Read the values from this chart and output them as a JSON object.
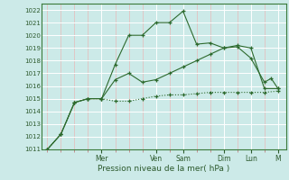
{
  "xlabel": "Pression niveau de la mer( hPa )",
  "bg_color": "#cceae8",
  "grid_color": "#ffffff",
  "line_color": "#2d6a2d",
  "ylim": [
    1011,
    1022.5
  ],
  "yticks": [
    1011,
    1012,
    1013,
    1014,
    1015,
    1016,
    1017,
    1018,
    1019,
    1020,
    1021,
    1022
  ],
  "day_labels": [
    "Mer",
    "Ven",
    "Sam",
    "Dim",
    "Lun",
    "M"
  ],
  "day_positions": [
    2.0,
    4.0,
    5.0,
    6.5,
    7.5,
    8.5
  ],
  "series1_x": [
    0,
    0.5,
    1.0,
    1.5,
    2.0,
    2.5,
    3.0,
    3.5,
    4.0,
    4.5,
    5.0,
    5.5,
    6.0,
    6.5,
    7.0,
    7.5,
    8.0,
    8.5
  ],
  "series1_y": [
    1011.0,
    1012.2,
    1014.7,
    1015.0,
    1015.0,
    1014.8,
    1014.8,
    1015.0,
    1015.2,
    1015.3,
    1015.3,
    1015.4,
    1015.5,
    1015.5,
    1015.5,
    1015.5,
    1015.5,
    1015.6
  ],
  "series2_x": [
    0,
    0.5,
    1.0,
    1.5,
    2.0,
    2.5,
    3.0,
    3.5,
    4.0,
    4.5,
    5.0,
    5.5,
    6.0,
    6.5,
    7.0,
    7.5,
    8.0,
    8.5
  ],
  "series2_y": [
    1011.0,
    1012.2,
    1014.7,
    1015.0,
    1015.0,
    1016.5,
    1017.0,
    1016.3,
    1016.5,
    1017.0,
    1017.5,
    1018.0,
    1018.5,
    1019.0,
    1019.2,
    1019.0,
    1015.8,
    1015.8
  ],
  "series3_x": [
    0,
    0.5,
    1.0,
    1.5,
    2.0,
    2.5,
    3.0,
    3.5,
    4.0,
    4.5,
    5.0,
    5.5,
    6.0,
    6.5,
    7.0,
    7.5,
    8.0,
    8.25,
    8.5
  ],
  "series3_y": [
    1011.0,
    1012.2,
    1014.7,
    1015.0,
    1015.0,
    1017.7,
    1020.0,
    1020.0,
    1021.0,
    1021.0,
    1021.9,
    1019.3,
    1019.4,
    1019.0,
    1019.1,
    1018.2,
    1016.3,
    1016.6,
    1015.8
  ],
  "xlim": [
    -0.2,
    8.8
  ]
}
